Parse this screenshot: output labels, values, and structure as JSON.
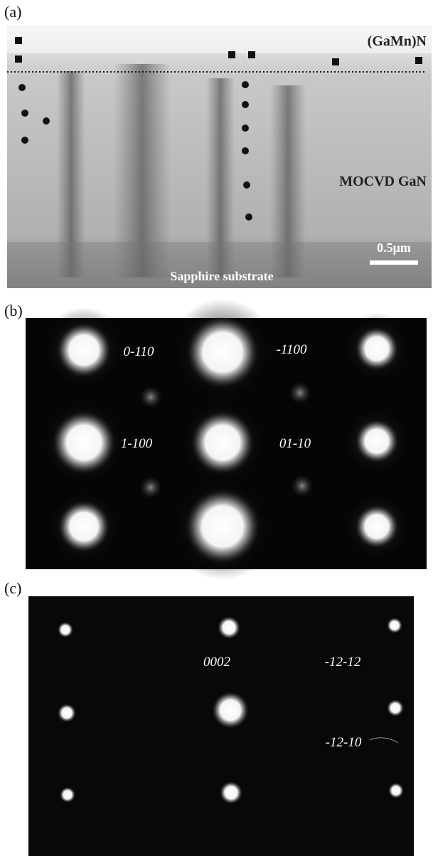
{
  "panels": [
    {
      "label": "(a)",
      "annotations": [
        "(GaMn)N",
        "MOCVD GaN",
        "0.5μm",
        "Sapphire substrate"
      ]
    },
    {
      "label": "(b)",
      "annotations": [
        "0-110",
        "-1100",
        "1-100",
        "01-10"
      ]
    },
    {
      "label": "(c)",
      "annotations": [
        "0002",
        "-12-12",
        "-12-10"
      ]
    }
  ]
}
